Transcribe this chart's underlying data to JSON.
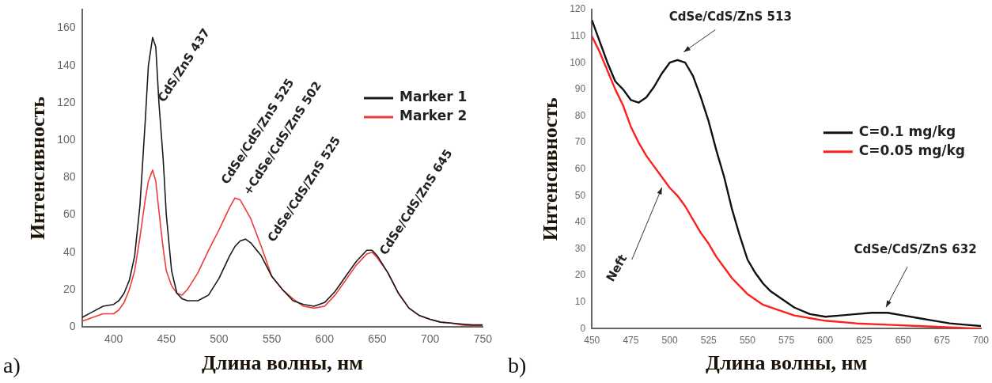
{
  "chart_data": [
    {
      "type": "line",
      "xlabel": "Длина волны, нм",
      "ylabel": "Интенсивность",
      "xlim": [
        370,
        750
      ],
      "ylim": [
        0,
        170
      ],
      "xticks": [
        400,
        450,
        500,
        550,
        600,
        650,
        700,
        750
      ],
      "yticks": [
        0,
        20,
        40,
        60,
        80,
        100,
        120,
        140,
        160
      ],
      "grid": false,
      "legend": "top right",
      "marker": "none",
      "line_style": "solid",
      "x": [
        370,
        380,
        390,
        400,
        405,
        410,
        415,
        420,
        425,
        430,
        433,
        437,
        440,
        443,
        447,
        450,
        455,
        460,
        465,
        470,
        480,
        490,
        500,
        510,
        515,
        520,
        525,
        530,
        540,
        550,
        560,
        570,
        580,
        590,
        600,
        610,
        620,
        630,
        640,
        645,
        650,
        660,
        670,
        680,
        690,
        700,
        710,
        720,
        730,
        740,
        750
      ],
      "series": [
        {
          "name": "Marker 1",
          "color": "#1a1a1a",
          "values": [
            5,
            8,
            11,
            12,
            14,
            18,
            25,
            38,
            65,
            110,
            140,
            155,
            150,
            120,
            90,
            60,
            30,
            18,
            15,
            14,
            14,
            17,
            26,
            38,
            43,
            46,
            47,
            45,
            38,
            27,
            20,
            14,
            12,
            11,
            13,
            19,
            27,
            35,
            41,
            41,
            38,
            29,
            18,
            10,
            6,
            4,
            2.5,
            2,
            1.5,
            1,
            1
          ]
        },
        {
          "name": "Marker 2",
          "color": "#ee3b3b",
          "values": [
            3,
            5,
            7,
            7,
            9,
            13,
            20,
            30,
            48,
            68,
            78,
            84,
            78,
            62,
            42,
            30,
            22,
            18,
            17,
            20,
            29,
            41,
            52,
            64,
            69,
            68,
            63,
            58,
            43,
            27,
            20,
            15,
            11,
            10,
            11,
            17,
            25,
            33,
            39,
            40,
            37,
            29,
            18,
            10,
            6,
            4,
            2.5,
            2,
            1,
            0.5,
            0.5
          ]
        }
      ],
      "annotations": [
        "CdS/ZnS 437",
        "CdSe/CdS/ZnS 525",
        "+CdSe/CdS/ZnS 502",
        "CdSe/CdS/ZnS 525",
        "CdSe/CdS/ZnS 645",
        "a)"
      ]
    },
    {
      "type": "line",
      "xlabel": "Длина волны, нм",
      "ylabel": "Интенсивность",
      "xlim": [
        450,
        700
      ],
      "ylim": [
        0,
        120
      ],
      "xticks": [
        450,
        475,
        500,
        525,
        550,
        575,
        600,
        625,
        650,
        675,
        700
      ],
      "yticks": [
        0,
        10,
        20,
        30,
        40,
        50,
        60,
        70,
        80,
        90,
        100,
        110,
        120
      ],
      "grid": false,
      "legend": "right",
      "marker": "none",
      "line_style": "solid",
      "series": [
        {
          "name": "C=0.1 mg/kg",
          "color": "#111111",
          "x": [
            450,
            455,
            460,
            465,
            470,
            475,
            480,
            485,
            490,
            495,
            500,
            505,
            510,
            515,
            520,
            525,
            530,
            535,
            540,
            545,
            550,
            555,
            560,
            565,
            570,
            575,
            580,
            590,
            600,
            610,
            620,
            630,
            640,
            650,
            660,
            670,
            680,
            690,
            700
          ],
          "values": [
            116,
            108,
            100,
            93,
            90,
            86,
            85,
            87,
            91,
            96,
            100,
            101,
            100,
            95,
            87,
            78,
            67,
            57,
            45,
            35,
            26,
            21,
            17,
            14,
            12,
            10,
            8,
            5.5,
            4.5,
            5,
            5.5,
            6,
            6,
            5,
            4,
            3,
            2,
            1.5,
            1
          ]
        },
        {
          "name": "C=0.05 mg/kg",
          "color": "#ff1f1f",
          "x": [
            450,
            455,
            460,
            465,
            470,
            475,
            480,
            485,
            490,
            495,
            500,
            505,
            510,
            515,
            520,
            525,
            530,
            535,
            540,
            545,
            550,
            560,
            570,
            580,
            590,
            600,
            620,
            640,
            660,
            680,
            700
          ],
          "values": [
            110,
            104,
            97,
            90,
            84,
            76,
            70,
            65,
            61,
            57,
            53,
            50,
            46,
            41,
            36,
            32,
            27,
            23,
            19,
            16,
            13,
            9,
            7,
            5,
            4,
            3,
            2,
            1.5,
            1,
            0.5,
            0
          ]
        }
      ],
      "annotations": [
        "CdSe/CdS/ZnS 513",
        "Neft",
        "CdSe/CdS/ZnS 632",
        "b)"
      ]
    }
  ]
}
